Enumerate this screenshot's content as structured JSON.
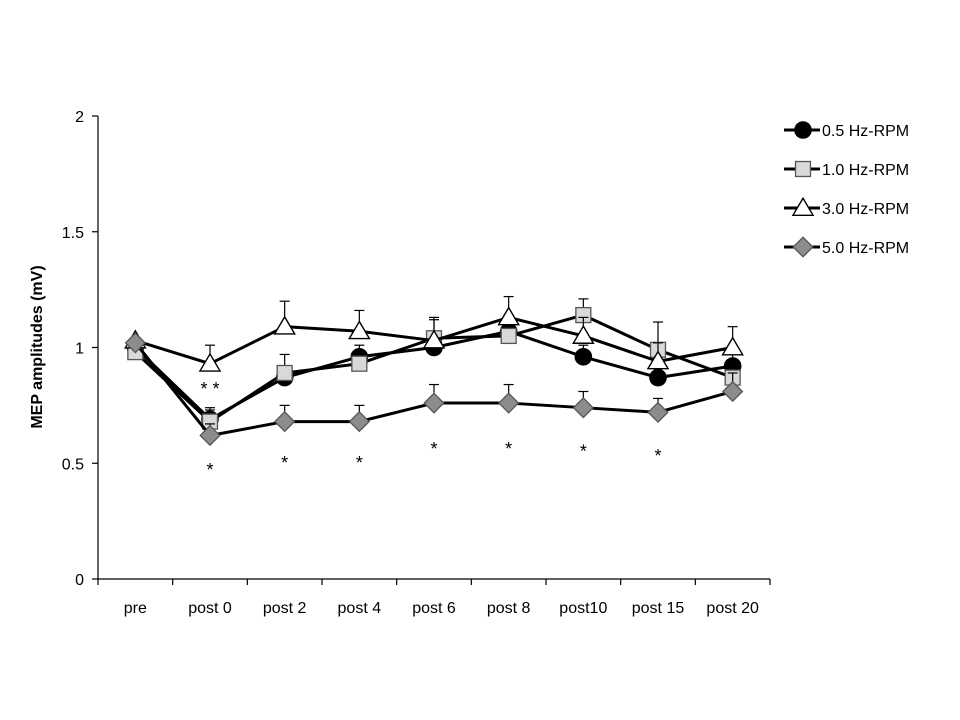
{
  "chart_data": {
    "type": "line",
    "title": "",
    "ylabel": "MEP amplitudes (mV)",
    "xlabel": "",
    "ylim": [
      0,
      2
    ],
    "yticks": [
      "0",
      "0.5",
      "1",
      "1.5",
      "2"
    ],
    "categories": [
      "pre",
      "post 0",
      "post 2",
      "post 4",
      "post 6",
      "post 8",
      "post10",
      "post 15",
      "post 20"
    ],
    "grid": false,
    "legend_position": "top-right",
    "series": [
      {
        "name": "0.5 Hz-RPM",
        "marker": "circle",
        "fill": "#000000",
        "values": [
          1.0,
          0.69,
          0.87,
          0.96,
          1.0,
          1.07,
          0.96,
          0.87,
          0.92
        ],
        "errors": [
          0.0,
          0.05,
          0.05,
          0.05,
          0.05,
          0.07,
          0.05,
          0.05,
          0.05
        ]
      },
      {
        "name": "1.0 Hz-RPM",
        "marker": "square",
        "fill": "#d9d9d9",
        "values": [
          0.98,
          0.68,
          0.89,
          0.93,
          1.04,
          1.05,
          1.14,
          0.99,
          0.87
        ],
        "errors": [
          0.0,
          0.05,
          0.08,
          0.05,
          0.09,
          0.06,
          0.07,
          0.12,
          0.05
        ]
      },
      {
        "name": "3.0 Hz-RPM",
        "marker": "triangle",
        "fill": "#ffffff",
        "values": [
          1.03,
          0.93,
          1.09,
          1.07,
          1.03,
          1.13,
          1.05,
          0.94,
          1.0
        ],
        "errors": [
          0.0,
          0.08,
          0.11,
          0.09,
          0.09,
          0.09,
          0.08,
          0.08,
          0.09
        ]
      },
      {
        "name": "5.0 Hz-RPM",
        "marker": "diamond",
        "fill": "#8c8c8c",
        "values": [
          1.02,
          0.62,
          0.68,
          0.68,
          0.76,
          0.76,
          0.74,
          0.72,
          0.81
        ],
        "errors": [
          0.0,
          0.05,
          0.07,
          0.07,
          0.08,
          0.08,
          0.07,
          0.06,
          0.08
        ]
      }
    ],
    "annotations": [
      {
        "text": "* *",
        "category": "post 0",
        "y": 0.83
      },
      {
        "text": "*",
        "category": "post 0",
        "y": 0.48
      },
      {
        "text": "*",
        "category": "post 2",
        "y": 0.51
      },
      {
        "text": "*",
        "category": "post 4",
        "y": 0.51
      },
      {
        "text": "*",
        "category": "post 6",
        "y": 0.57
      },
      {
        "text": "*",
        "category": "post 8",
        "y": 0.57
      },
      {
        "text": "*",
        "category": "post10",
        "y": 0.56
      },
      {
        "text": "*",
        "category": "post 15",
        "y": 0.54
      }
    ]
  }
}
